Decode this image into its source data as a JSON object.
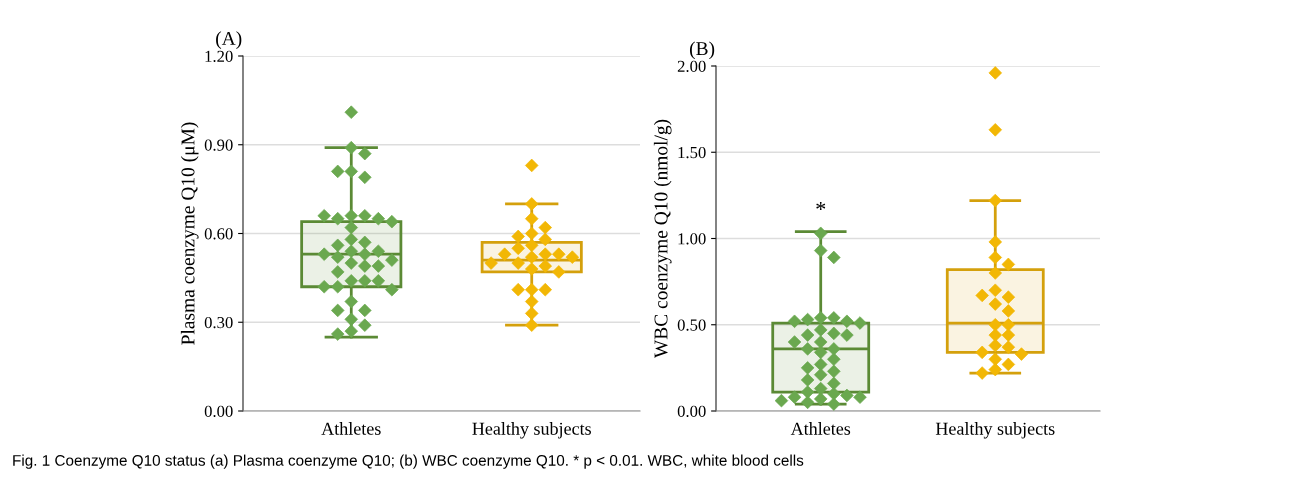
{
  "chart_data": [
    {
      "type": "box",
      "title": "(A)",
      "ylabel": "Plasma coenzyme Q10 (μM)",
      "categories": [
        "Athletes",
        "Healthy subjects"
      ],
      "colors": [
        "#5b8a35",
        "#d4a00c"
      ],
      "boxes": [
        {
          "low": 0.25,
          "q1": 0.42,
          "median": 0.53,
          "q3": 0.64,
          "high": 0.89
        },
        {
          "low": 0.29,
          "q1": 0.47,
          "median": 0.51,
          "q3": 0.57,
          "high": 0.7
        }
      ],
      "series": [
        {
          "type": "scatter",
          "color": "#6aa84f",
          "x": [
            "Athletes",
            "Athletes",
            "Athletes",
            "Athletes",
            "Athletes",
            "Athletes",
            "Athletes",
            "Athletes",
            "Athletes",
            "Athletes",
            "Athletes",
            "Athletes",
            "Athletes",
            "Athletes",
            "Athletes",
            "Athletes",
            "Athletes",
            "Athletes",
            "Athletes",
            "Athletes",
            "Athletes",
            "Athletes",
            "Athletes",
            "Athletes",
            "Athletes",
            "Athletes",
            "Athletes",
            "Athletes",
            "Athletes",
            "Athletes",
            "Athletes",
            "Athletes",
            "Athletes",
            "Athletes",
            "Athletes",
            "Athletes",
            "Athletes",
            "Athletes",
            "Athletes"
          ],
          "values": [
            1.01,
            0.89,
            0.87,
            0.81,
            0.79,
            0.81,
            0.66,
            0.66,
            0.65,
            0.65,
            0.66,
            0.64,
            0.62,
            0.58,
            0.57,
            0.56,
            0.54,
            0.54,
            0.53,
            0.53,
            0.52,
            0.51,
            0.5,
            0.49,
            0.49,
            0.47,
            0.44,
            0.44,
            0.44,
            0.42,
            0.42,
            0.41,
            0.37,
            0.34,
            0.34,
            0.31,
            0.29,
            0.27,
            0.26
          ]
        },
        {
          "type": "scatter",
          "color": "#f2b705",
          "x": [
            "Healthy subjects",
            "Healthy subjects",
            "Healthy subjects",
            "Healthy subjects",
            "Healthy subjects",
            "Healthy subjects",
            "Healthy subjects",
            "Healthy subjects",
            "Healthy subjects",
            "Healthy subjects",
            "Healthy subjects",
            "Healthy subjects",
            "Healthy subjects",
            "Healthy subjects",
            "Healthy subjects",
            "Healthy subjects",
            "Healthy subjects",
            "Healthy subjects",
            "Healthy subjects",
            "Healthy subjects",
            "Healthy subjects",
            "Healthy subjects",
            "Healthy subjects",
            "Healthy subjects",
            "Healthy subjects"
          ],
          "values": [
            0.83,
            0.7,
            0.65,
            0.62,
            0.6,
            0.59,
            0.58,
            0.56,
            0.55,
            0.53,
            0.53,
            0.53,
            0.52,
            0.52,
            0.5,
            0.5,
            0.49,
            0.48,
            0.47,
            0.41,
            0.41,
            0.41,
            0.37,
            0.33,
            0.29
          ]
        }
      ],
      "ylim": [
        0,
        1.2
      ],
      "yticks": [
        {
          "value": 0,
          "label": "0.00"
        },
        {
          "value": 0.3,
          "label": "0.30"
        },
        {
          "value": 0.6,
          "label": "0.60"
        },
        {
          "value": 0.9,
          "label": "0.90"
        },
        {
          "value": 1.2,
          "label": "1.20"
        }
      ],
      "grid": "y",
      "marker": "diamond",
      "annotations": [
        "Fig. 1 Coenzyme Q10 status (a) Plasma coenzyme Q10; (b) WBC coenzyme Q10. * p < 0.01. WBC, white blood cells"
      ]
    },
    {
      "type": "box",
      "title": "(B)",
      "ylabel": "WBC coenzyme Q10 (nmol/g)",
      "categories": [
        "Athletes",
        "Healthy subjects"
      ],
      "colors": [
        "#5b8a35",
        "#d4a00c"
      ],
      "boxes": [
        {
          "low": 0.04,
          "q1": 0.11,
          "median": 0.36,
          "q3": 0.51,
          "high": 1.04
        },
        {
          "low": 0.22,
          "q1": 0.34,
          "median": 0.51,
          "q3": 0.82,
          "high": 1.22
        }
      ],
      "series": [
        {
          "type": "scatter",
          "color": "#6aa84f",
          "x": [
            "Athletes",
            "Athletes",
            "Athletes",
            "Athletes",
            "Athletes",
            "Athletes",
            "Athletes",
            "Athletes",
            "Athletes",
            "Athletes",
            "Athletes",
            "Athletes",
            "Athletes",
            "Athletes",
            "Athletes",
            "Athletes",
            "Athletes",
            "Athletes",
            "Athletes",
            "Athletes",
            "Athletes",
            "Athletes",
            "Athletes",
            "Athletes",
            "Athletes",
            "Athletes",
            "Athletes",
            "Athletes",
            "Athletes",
            "Athletes",
            "Athletes",
            "Athletes",
            "Athletes",
            "Athletes",
            "Athletes"
          ],
          "values": [
            1.03,
            0.93,
            0.89,
            0.54,
            0.54,
            0.53,
            0.52,
            0.52,
            0.51,
            0.47,
            0.45,
            0.44,
            0.44,
            0.4,
            0.4,
            0.36,
            0.36,
            0.34,
            0.3,
            0.27,
            0.25,
            0.23,
            0.21,
            0.18,
            0.16,
            0.13,
            0.11,
            0.1,
            0.09,
            0.08,
            0.08,
            0.07,
            0.06,
            0.05,
            0.04
          ]
        },
        {
          "type": "scatter",
          "color": "#f2b705",
          "x": [
            "Healthy subjects",
            "Healthy subjects",
            "Healthy subjects",
            "Healthy subjects",
            "Healthy subjects",
            "Healthy subjects",
            "Healthy subjects",
            "Healthy subjects",
            "Healthy subjects",
            "Healthy subjects",
            "Healthy subjects",
            "Healthy subjects",
            "Healthy subjects",
            "Healthy subjects",
            "Healthy subjects",
            "Healthy subjects",
            "Healthy subjects",
            "Healthy subjects",
            "Healthy subjects",
            "Healthy subjects",
            "Healthy subjects",
            "Healthy subjects",
            "Healthy subjects",
            "Healthy subjects"
          ],
          "values": [
            1.96,
            1.63,
            1.22,
            0.98,
            0.89,
            0.85,
            0.8,
            0.7,
            0.66,
            0.67,
            0.62,
            0.58,
            0.5,
            0.5,
            0.44,
            0.44,
            0.38,
            0.37,
            0.34,
            0.33,
            0.3,
            0.27,
            0.24,
            0.22
          ]
        }
      ],
      "ylim": [
        0,
        2.0
      ],
      "yticks": [
        {
          "value": 0,
          "label": "0.00"
        },
        {
          "value": 0.5,
          "label": "0.50"
        },
        {
          "value": 1.0,
          "label": "1.00"
        },
        {
          "value": 1.5,
          "label": "1.50"
        },
        {
          "value": 2.0,
          "label": "2.00"
        }
      ],
      "grid": "y",
      "marker": "diamond",
      "annotations": [
        "*"
      ]
    }
  ]
}
